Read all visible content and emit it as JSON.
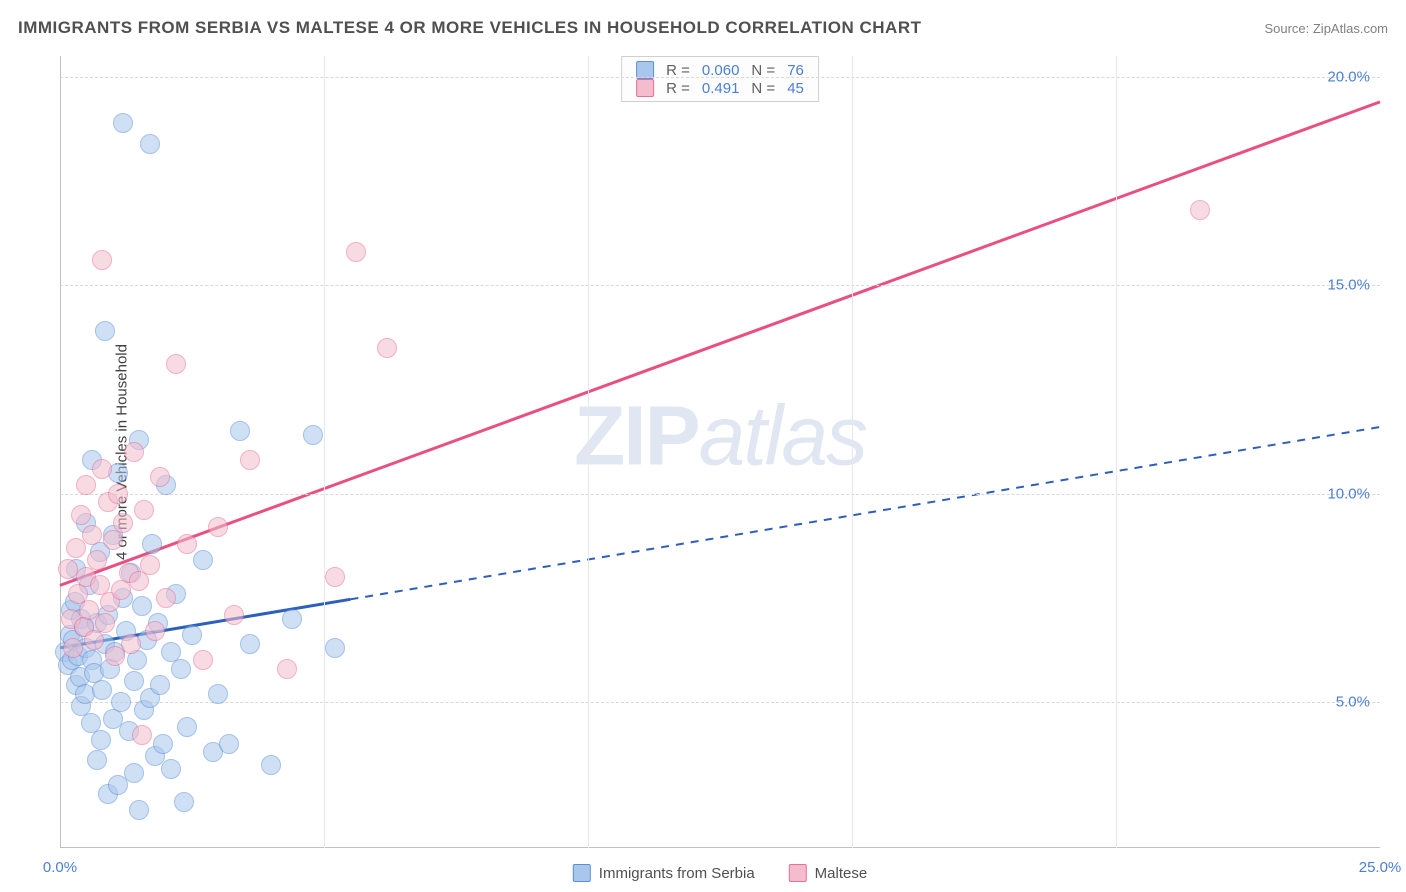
{
  "title": "IMMIGRANTS FROM SERBIA VS MALTESE 4 OR MORE VEHICLES IN HOUSEHOLD CORRELATION CHART",
  "source": "Source: ZipAtlas.com",
  "ylabel": "4 or more Vehicles in Household",
  "watermark_bold": "ZIP",
  "watermark_rest": "atlas",
  "chart": {
    "type": "scatter",
    "background_color": "#ffffff",
    "grid_color": "#d8d8d8",
    "axis_color": "#c0c0c0",
    "xlim": [
      0,
      25
    ],
    "ylim": [
      1.5,
      20.5
    ],
    "x_ticks": [
      0,
      25
    ],
    "x_tick_labels": [
      "0.0%",
      "25.0%"
    ],
    "x_gridlines": [
      5,
      10,
      15,
      20
    ],
    "y_ticks": [
      5,
      10,
      15,
      20
    ],
    "y_tick_labels": [
      "5.0%",
      "10.0%",
      "15.0%",
      "20.0%"
    ],
    "point_radius": 10,
    "point_opacity": 0.55,
    "series": [
      {
        "key": "serbia",
        "label": "Immigrants from Serbia",
        "fill": "#a9c7ec",
        "stroke": "#5b8fd6",
        "line_color": "#2d5fbd",
        "line_width": 3,
        "line_dash_after_x": 5.5,
        "R": "0.060",
        "N": "76",
        "trend": {
          "x1": 0,
          "y1": 6.3,
          "x2": 25,
          "y2": 11.6
        },
        "points": [
          [
            0.1,
            6.2
          ],
          [
            0.15,
            5.9
          ],
          [
            0.18,
            6.6
          ],
          [
            0.2,
            7.2
          ],
          [
            0.22,
            6.0
          ],
          [
            0.25,
            6.5
          ],
          [
            0.28,
            7.4
          ],
          [
            0.3,
            5.4
          ],
          [
            0.3,
            8.2
          ],
          [
            0.35,
            6.1
          ],
          [
            0.38,
            5.6
          ],
          [
            0.4,
            7.0
          ],
          [
            0.4,
            4.9
          ],
          [
            0.45,
            6.8
          ],
          [
            0.48,
            5.2
          ],
          [
            0.5,
            6.3
          ],
          [
            0.5,
            9.3
          ],
          [
            0.55,
            7.8
          ],
          [
            0.58,
            4.5
          ],
          [
            0.6,
            6.0
          ],
          [
            0.6,
            10.8
          ],
          [
            0.65,
            5.7
          ],
          [
            0.7,
            6.9
          ],
          [
            0.7,
            3.6
          ],
          [
            0.75,
            8.6
          ],
          [
            0.78,
            4.1
          ],
          [
            0.8,
            5.3
          ],
          [
            0.85,
            6.4
          ],
          [
            0.85,
            13.9
          ],
          [
            0.9,
            7.1
          ],
          [
            0.9,
            2.8
          ],
          [
            0.95,
            5.8
          ],
          [
            1.0,
            9.0
          ],
          [
            1.0,
            4.6
          ],
          [
            1.05,
            6.2
          ],
          [
            1.1,
            10.5
          ],
          [
            1.1,
            3.0
          ],
          [
            1.15,
            5.0
          ],
          [
            1.2,
            7.5
          ],
          [
            1.2,
            18.9
          ],
          [
            1.25,
            6.7
          ],
          [
            1.3,
            4.3
          ],
          [
            1.35,
            8.1
          ],
          [
            1.4,
            5.5
          ],
          [
            1.4,
            3.3
          ],
          [
            1.45,
            6.0
          ],
          [
            1.5,
            11.3
          ],
          [
            1.5,
            2.4
          ],
          [
            1.55,
            7.3
          ],
          [
            1.6,
            4.8
          ],
          [
            1.65,
            6.5
          ],
          [
            1.7,
            5.1
          ],
          [
            1.7,
            18.4
          ],
          [
            1.75,
            8.8
          ],
          [
            1.8,
            3.7
          ],
          [
            1.85,
            6.9
          ],
          [
            1.9,
            5.4
          ],
          [
            1.95,
            4.0
          ],
          [
            2.0,
            10.2
          ],
          [
            2.1,
            6.2
          ],
          [
            2.1,
            3.4
          ],
          [
            2.2,
            7.6
          ],
          [
            2.3,
            5.8
          ],
          [
            2.35,
            2.6
          ],
          [
            2.4,
            4.4
          ],
          [
            2.5,
            6.6
          ],
          [
            2.7,
            8.4
          ],
          [
            2.9,
            3.8
          ],
          [
            3.0,
            5.2
          ],
          [
            3.2,
            4.0
          ],
          [
            3.4,
            11.5
          ],
          [
            3.6,
            6.4
          ],
          [
            4.0,
            3.5
          ],
          [
            4.4,
            7.0
          ],
          [
            4.8,
            11.4
          ],
          [
            5.2,
            6.3
          ]
        ]
      },
      {
        "key": "maltese",
        "label": "Maltese",
        "fill": "#f4bccd",
        "stroke": "#e76f99",
        "line_color": "#e94f81",
        "line_width": 3,
        "R": "0.491",
        "N": "45",
        "trend": {
          "x1": 0,
          "y1": 7.8,
          "x2": 25,
          "y2": 19.4
        },
        "points": [
          [
            0.15,
            8.2
          ],
          [
            0.2,
            7.0
          ],
          [
            0.25,
            6.3
          ],
          [
            0.3,
            8.7
          ],
          [
            0.35,
            7.6
          ],
          [
            0.4,
            9.5
          ],
          [
            0.45,
            6.8
          ],
          [
            0.5,
            8.0
          ],
          [
            0.5,
            10.2
          ],
          [
            0.55,
            7.2
          ],
          [
            0.6,
            9.0
          ],
          [
            0.65,
            6.5
          ],
          [
            0.7,
            8.4
          ],
          [
            0.75,
            7.8
          ],
          [
            0.8,
            10.6
          ],
          [
            0.8,
            15.6
          ],
          [
            0.85,
            6.9
          ],
          [
            0.9,
            9.8
          ],
          [
            0.95,
            7.4
          ],
          [
            1.0,
            8.9
          ],
          [
            1.05,
            6.1
          ],
          [
            1.1,
            10.0
          ],
          [
            1.15,
            7.7
          ],
          [
            1.2,
            9.3
          ],
          [
            1.3,
            8.1
          ],
          [
            1.35,
            6.4
          ],
          [
            1.4,
            11.0
          ],
          [
            1.5,
            7.9
          ],
          [
            1.55,
            4.2
          ],
          [
            1.6,
            9.6
          ],
          [
            1.7,
            8.3
          ],
          [
            1.8,
            6.7
          ],
          [
            1.9,
            10.4
          ],
          [
            2.0,
            7.5
          ],
          [
            2.2,
            13.1
          ],
          [
            2.4,
            8.8
          ],
          [
            2.7,
            6.0
          ],
          [
            3.0,
            9.2
          ],
          [
            3.3,
            7.1
          ],
          [
            3.6,
            10.8
          ],
          [
            4.3,
            5.8
          ],
          [
            5.2,
            8.0
          ],
          [
            5.6,
            15.8
          ],
          [
            6.2,
            13.5
          ],
          [
            21.6,
            16.8
          ]
        ]
      }
    ]
  },
  "legend_box": {
    "r_label": "R =",
    "n_label": "N ="
  },
  "bottom_legend": {
    "series1": "Immigrants from Serbia",
    "series2": "Maltese"
  }
}
